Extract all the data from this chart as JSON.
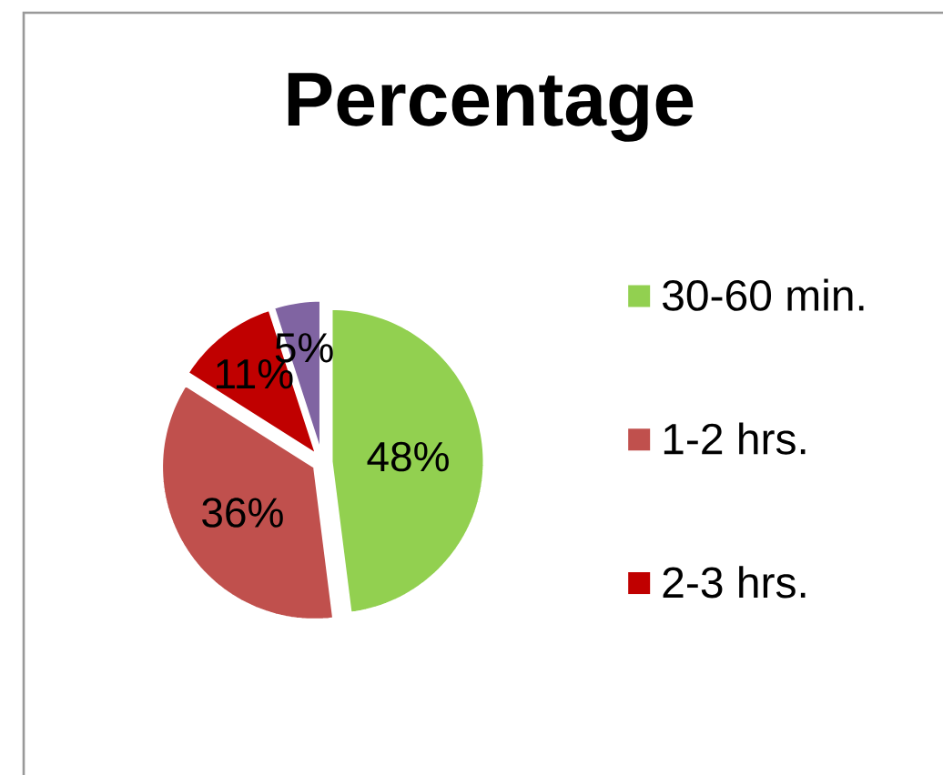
{
  "chart_data": {
    "type": "pie",
    "title": "Percentage",
    "categories": [
      "30-60 min.",
      "1-2 hrs.",
      "2-3 hrs.",
      null
    ],
    "values": [
      48,
      36,
      11,
      5
    ],
    "colors": [
      "#92d050",
      "#c0504d",
      "#c00000",
      "#8064a2"
    ],
    "value_labels": [
      "48%",
      "36%",
      "11%",
      "5%"
    ],
    "legend": "right"
  }
}
